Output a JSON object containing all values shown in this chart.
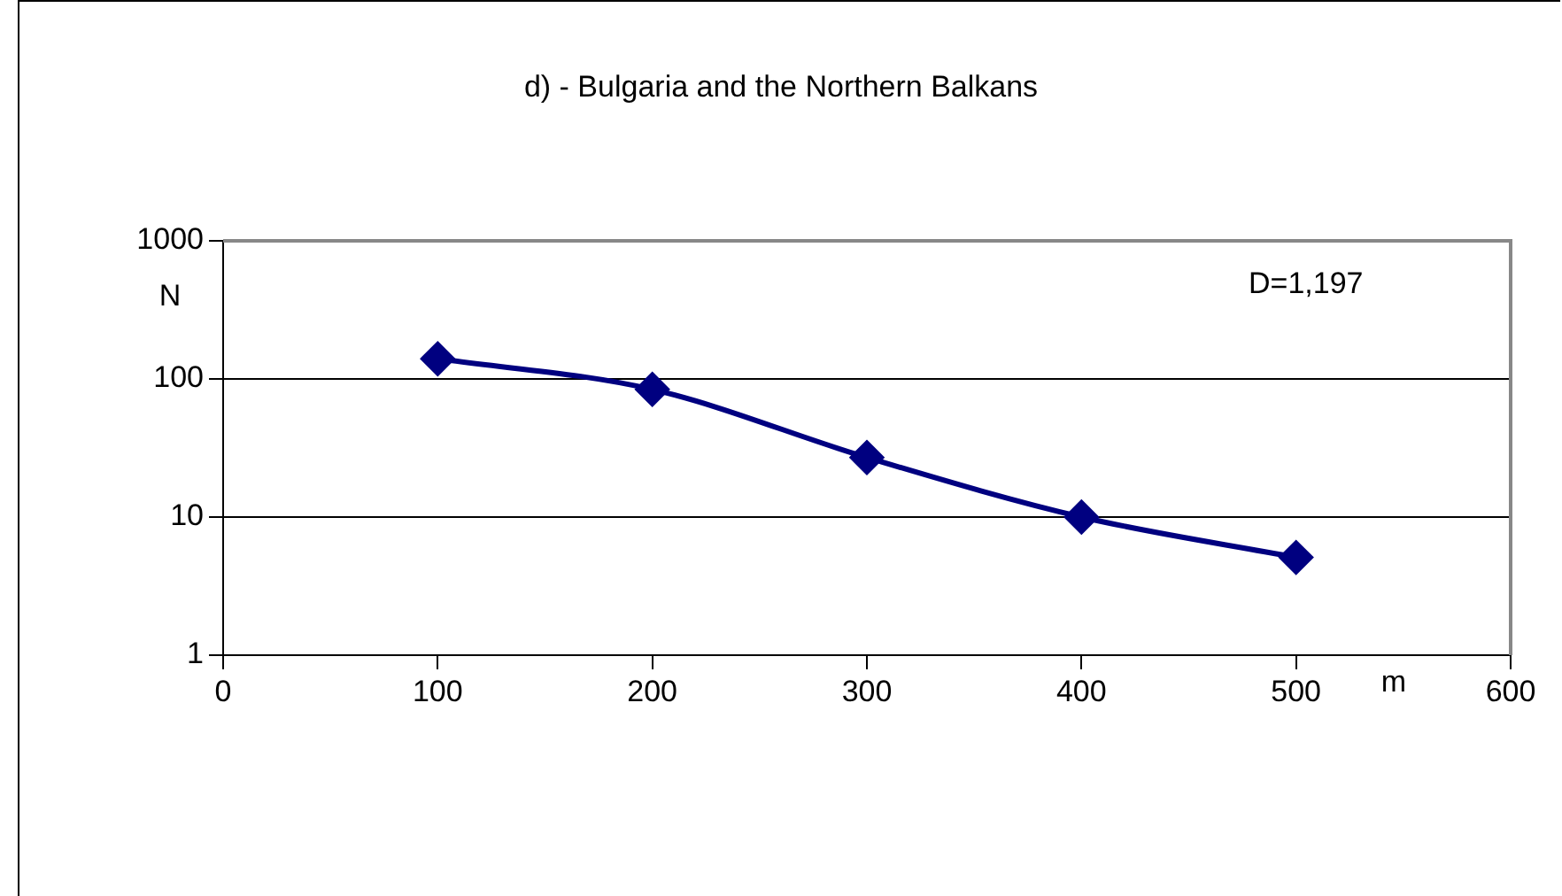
{
  "chart_data": {
    "type": "line",
    "title": "d) - Bulgaria and the Northern Balkans",
    "xlabel": "m",
    "ylabel": "N",
    "annotations": [
      "D=1,197"
    ],
    "x": [
      100,
      200,
      300,
      400,
      500
    ],
    "series": [
      {
        "color": "#000080",
        "values": [
          140,
          84,
          27,
          10,
          5.1
        ]
      }
    ],
    "xlim": [
      0,
      600
    ],
    "xticks": [
      0,
      100,
      200,
      300,
      400,
      500,
      600
    ],
    "ylim": [
      1,
      1000
    ],
    "yticks": [
      1,
      10,
      100,
      1000
    ],
    "log": "y",
    "grid": "y",
    "marker": "diamond",
    "line_style": "solid"
  }
}
